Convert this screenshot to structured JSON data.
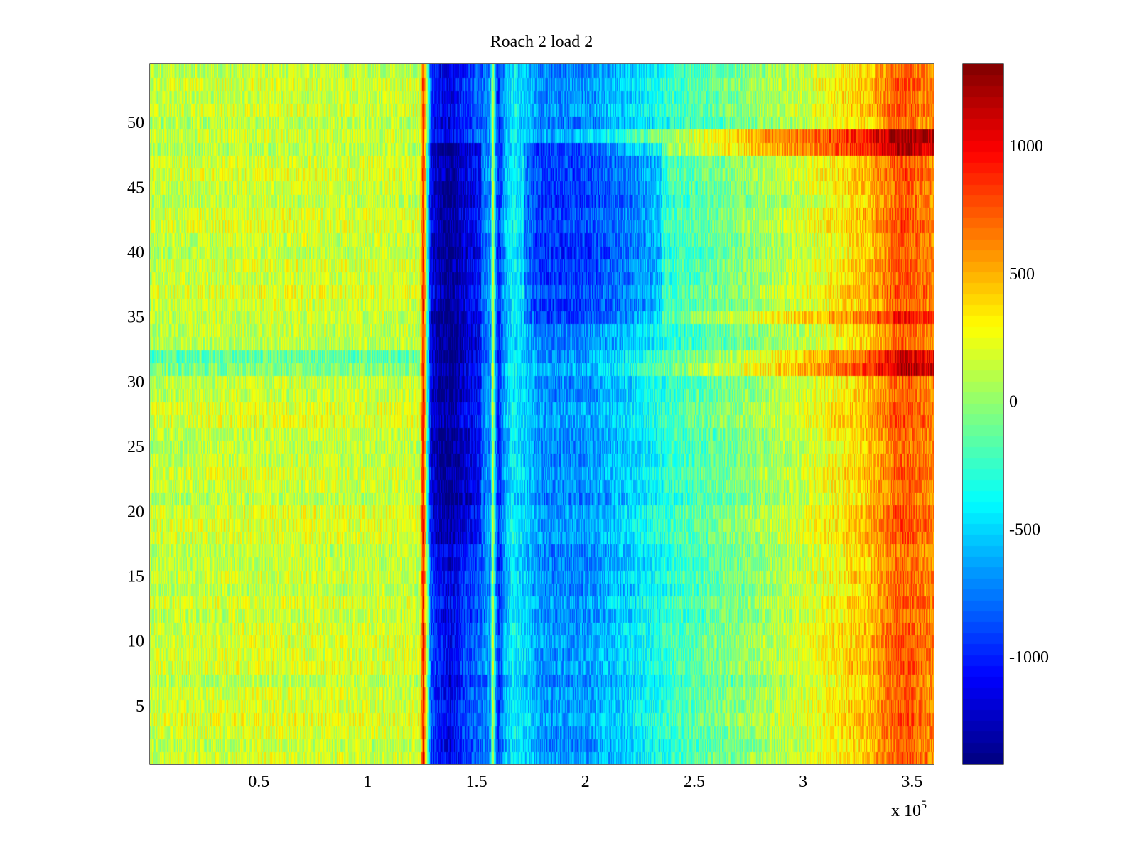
{
  "chart_data": {
    "type": "heatmap",
    "title": "Roach 2 load 2",
    "xlabel": "",
    "ylabel": "",
    "x_exponent_label": {
      "base": "x 10",
      "exponent": "5"
    },
    "xlim": [
      0,
      3.6
    ],
    "ylim": [
      0.5,
      54.5
    ],
    "rows": 54,
    "x_ticks": [
      {
        "value": 0.5,
        "label": "0.5"
      },
      {
        "value": 1,
        "label": "1"
      },
      {
        "value": 1.5,
        "label": "1.5"
      },
      {
        "value": 2,
        "label": "2"
      },
      {
        "value": 2.5,
        "label": "2.5"
      },
      {
        "value": 3,
        "label": "3"
      },
      {
        "value": 3.5,
        "label": "3.5"
      }
    ],
    "y_ticks": [
      {
        "value": 5,
        "label": "5"
      },
      {
        "value": 10,
        "label": "10"
      },
      {
        "value": 15,
        "label": "15"
      },
      {
        "value": 20,
        "label": "20"
      },
      {
        "value": 25,
        "label": "25"
      },
      {
        "value": 30,
        "label": "30"
      },
      {
        "value": 35,
        "label": "35"
      },
      {
        "value": 40,
        "label": "40"
      },
      {
        "value": 45,
        "label": "45"
      },
      {
        "value": 50,
        "label": "50"
      }
    ],
    "colorbar": {
      "colormap": "jet",
      "clim": [
        -1420,
        1320
      ],
      "ticks": [
        {
          "value": 1000,
          "label": "1000"
        },
        {
          "value": 500,
          "label": "500"
        },
        {
          "value": 0,
          "label": "0"
        },
        {
          "value": -500,
          "label": "-500"
        },
        {
          "value": -1000,
          "label": "-1000"
        }
      ]
    },
    "column_profile": [
      {
        "x": 0.0,
        "value": 120
      },
      {
        "x": 0.5,
        "value": 170
      },
      {
        "x": 1.0,
        "value": 150
      },
      {
        "x": 1.24,
        "value": 150
      },
      {
        "x": 1.255,
        "value": 950
      },
      {
        "x": 1.27,
        "value": 150
      },
      {
        "x": 1.29,
        "value": -900
      },
      {
        "x": 1.33,
        "value": -1050
      },
      {
        "x": 1.38,
        "value": -1150
      },
      {
        "x": 1.44,
        "value": -950
      },
      {
        "x": 1.52,
        "value": -800
      },
      {
        "x": 1.565,
        "value": -650
      },
      {
        "x": 1.575,
        "value": 200
      },
      {
        "x": 1.585,
        "value": -550
      },
      {
        "x": 1.6,
        "value": -1000
      },
      {
        "x": 1.63,
        "value": -600
      },
      {
        "x": 1.67,
        "value": -400
      },
      {
        "x": 1.8,
        "value": -700
      },
      {
        "x": 2.0,
        "value": -680
      },
      {
        "x": 2.2,
        "value": -500
      },
      {
        "x": 2.4,
        "value": -250
      },
      {
        "x": 2.7,
        "value": -50
      },
      {
        "x": 3.0,
        "value": 150
      },
      {
        "x": 3.3,
        "value": 450
      },
      {
        "x": 3.45,
        "value": 750
      },
      {
        "x": 3.6,
        "value": 600
      }
    ],
    "row_features": [
      {
        "rows": [
          48,
          49
        ],
        "x_from": 1.65,
        "delta": 500,
        "note": "warm band toward right"
      },
      {
        "rows": [
          35,
          35
        ],
        "x_from": 1.65,
        "delta": 250,
        "note": "warm band toward right"
      },
      {
        "rows": [
          31,
          32
        ],
        "x_from": 0,
        "delta": -250,
        "note": "cool left, warm right"
      },
      {
        "rows": [
          18,
          48
        ],
        "x_range": [
          1.27,
          1.52
        ],
        "delta": -250,
        "note": "deep blue core"
      },
      {
        "rows": [
          35,
          48
        ],
        "x_range": [
          1.72,
          2.35
        ],
        "delta": -250,
        "note": "blue block"
      }
    ]
  }
}
